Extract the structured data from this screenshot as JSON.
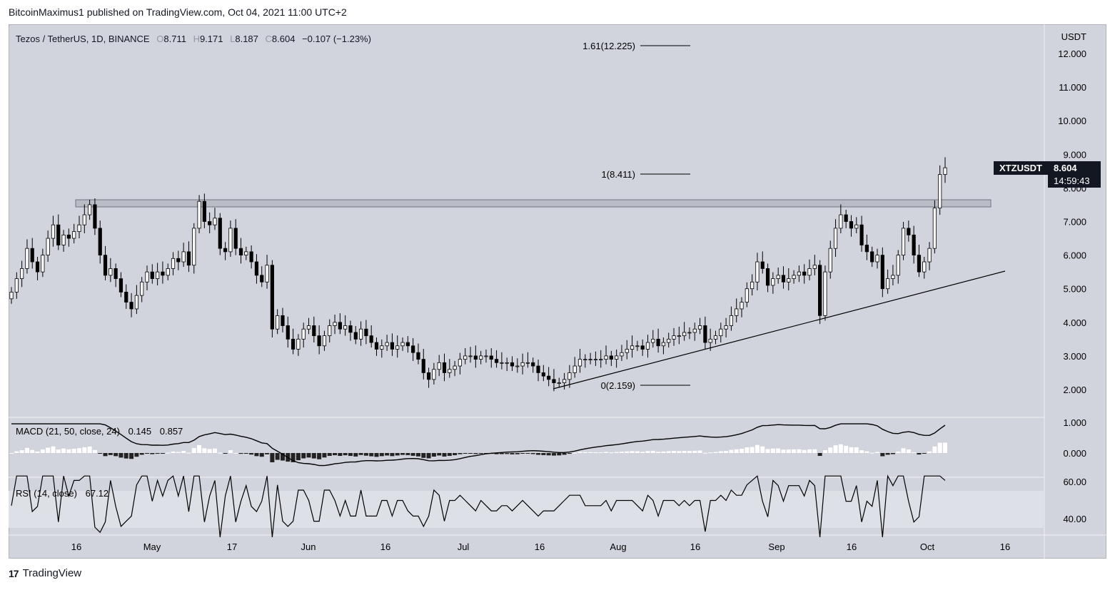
{
  "header": {
    "publish_line": "BitcoinMaximus1 published on TradingView.com, Oct 04, 2021 11:00 UTC+2"
  },
  "legend": {
    "symbol_line": "Tezos / TetherUS, 1D, BINANCE",
    "o_label": "O",
    "o_value": "8.711",
    "h_label": "H",
    "h_value": "9.171",
    "l_label": "L",
    "l_value": "8.187",
    "c_label": "C",
    "c_value": "8.604",
    "change": "−0.107 (−1.23%)"
  },
  "price_axis": {
    "currency": "USDT",
    "ticks": [
      "12.000",
      "11.000",
      "10.000",
      "9.000",
      "8.000",
      "7.000",
      "6.000",
      "5.000",
      "4.000",
      "3.000",
      "2.000"
    ]
  },
  "price_tag": {
    "symbol": "XTZUSDT",
    "price": "8.604",
    "countdown": "14:59:43"
  },
  "fib": {
    "l161": "1.61(12.225)",
    "l1": "1(8.411)",
    "l0": "0(2.159)"
  },
  "macd": {
    "label": "MACD (21, 50, close, 24)",
    "v1": "0.145",
    "v2": "0.857",
    "ticks": [
      "1.000",
      "0.000"
    ]
  },
  "rsi": {
    "label": "RSI (14, close)",
    "value": "67.12",
    "ticks": [
      "60.00",
      "40.00"
    ]
  },
  "time_axis": [
    "16",
    "May",
    "17",
    "Jun",
    "16",
    "Jul",
    "16",
    "Aug",
    "16",
    "Sep",
    "16",
    "Oct",
    "16"
  ],
  "footer": {
    "brand": "TradingView",
    "logo": "17"
  },
  "colors": {
    "background": "#d1d4dc",
    "up_candle": "#ffffff",
    "down_candle": "#000000",
    "price_tag_bg": "#131722",
    "resistance_zone": "#b9bcc4"
  },
  "chart_data": {
    "type": "candlestick",
    "symbol": "XTZUSDT",
    "interval": "1D",
    "ylim": [
      1.5,
      12.8
    ],
    "resistance_zone": [
      7.45,
      7.65
    ],
    "fib_levels": [
      12.225,
      8.411,
      2.159
    ],
    "closes": [
      4.9,
      5.3,
      5.6,
      6.2,
      5.8,
      5.5,
      6.0,
      6.5,
      6.9,
      6.3,
      6.6,
      6.5,
      6.7,
      6.9,
      7.2,
      7.5,
      6.8,
      6.0,
      5.4,
      5.6,
      5.3,
      4.9,
      4.6,
      4.4,
      4.8,
      5.2,
      5.5,
      5.3,
      5.5,
      5.4,
      5.6,
      5.9,
      5.8,
      6.1,
      5.7,
      6.8,
      7.6,
      7.0,
      6.9,
      7.1,
      6.2,
      6.1,
      6.8,
      6.2,
      6.0,
      6.1,
      5.8,
      5.4,
      5.2,
      5.7,
      3.8,
      4.2,
      3.9,
      3.5,
      3.2,
      3.5,
      3.8,
      3.9,
      3.6,
      3.3,
      3.6,
      3.9,
      4.0,
      3.8,
      3.9,
      3.7,
      3.5,
      3.8,
      3.6,
      3.4,
      3.2,
      3.3,
      3.4,
      3.2,
      3.3,
      3.4,
      3.3,
      3.1,
      2.9,
      2.5,
      2.3,
      2.6,
      2.8,
      2.5,
      2.6,
      2.7,
      2.9,
      3.0,
      3.0,
      2.9,
      3.0,
      3.0,
      2.9,
      2.8,
      2.8,
      2.8,
      2.7,
      2.7,
      2.8,
      2.8,
      2.7,
      2.5,
      2.4,
      2.3,
      2.2,
      2.2,
      2.3,
      2.5,
      2.7,
      2.9,
      2.9,
      2.9,
      2.9,
      2.9,
      3.0,
      2.9,
      3.0,
      3.1,
      3.2,
      3.3,
      3.3,
      3.2,
      3.4,
      3.5,
      3.3,
      3.4,
      3.5,
      3.6,
      3.6,
      3.7,
      3.7,
      3.8,
      3.9,
      3.4,
      3.5,
      3.6,
      3.8,
      3.9,
      4.2,
      4.4,
      4.6,
      5.0,
      5.2,
      5.8,
      5.6,
      5.1,
      5.3,
      5.4,
      5.2,
      5.3,
      5.4,
      5.5,
      5.4,
      5.6,
      5.7,
      4.2,
      5.5,
      6.2,
      6.8,
      7.2,
      7.0,
      6.8,
      6.9,
      6.3,
      6.1,
      5.8,
      6.0,
      5.0,
      5.3,
      5.4,
      6.0,
      6.8,
      6.6,
      6.0,
      5.5,
      5.8,
      6.2,
      7.4,
      8.4,
      8.6
    ]
  }
}
